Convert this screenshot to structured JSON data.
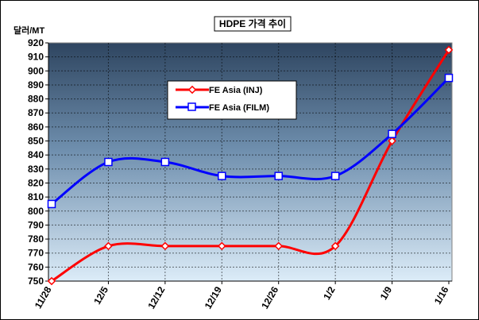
{
  "chart_data": {
    "type": "line",
    "title": "HDPE 가격 추이",
    "ylabel": "달러/MT",
    "xlabel": "",
    "categories": [
      "11/28",
      "12/5",
      "12/12",
      "12/19",
      "12/26",
      "1/2",
      "1/9",
      "1/16"
    ],
    "ylim": [
      750,
      920
    ],
    "ytick_step": 10,
    "grid": true,
    "legend_position": "upper-left",
    "series": [
      {
        "name": "FE Asia (INJ)",
        "color": "#ff0000",
        "marker": "diamond",
        "values": [
          750,
          775,
          775,
          775,
          775,
          775,
          850,
          915
        ]
      },
      {
        "name": "FE Asia (FILM)",
        "color": "#0000ff",
        "marker": "square",
        "values": [
          805,
          835,
          835,
          825,
          825,
          825,
          855,
          895
        ]
      }
    ]
  }
}
